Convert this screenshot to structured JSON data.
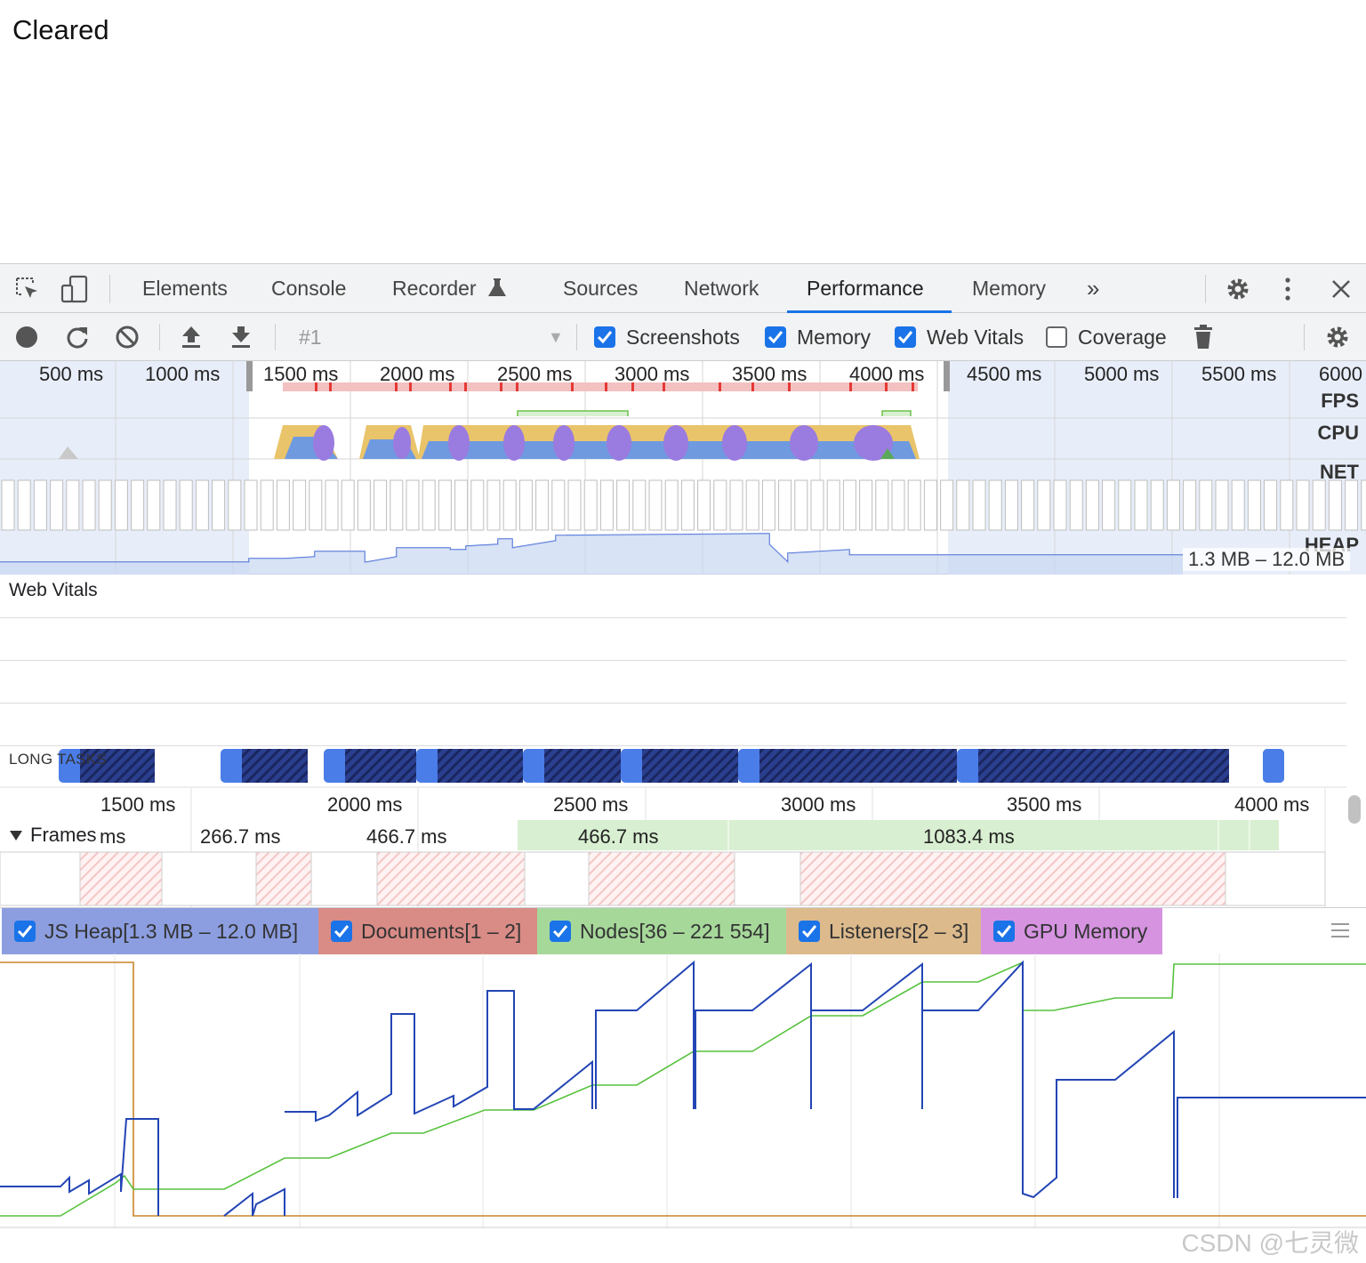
{
  "page": {
    "text": "Cleared"
  },
  "devtools": {
    "tabs": [
      {
        "label": "Elements"
      },
      {
        "label": "Console"
      },
      {
        "label": "Recorder"
      },
      {
        "label": "Sources"
      },
      {
        "label": "Network"
      },
      {
        "label": "Performance",
        "active": true
      },
      {
        "label": "Memory"
      }
    ],
    "more_tabs_icon": "chevron-double-right-icon"
  },
  "toolbar": {
    "recording_select": "#1",
    "checkboxes": [
      {
        "label": "Screenshots",
        "checked": true
      },
      {
        "label": "Memory",
        "checked": true
      },
      {
        "label": "Web Vitals",
        "checked": true
      },
      {
        "label": "Coverage",
        "checked": false
      }
    ]
  },
  "overview": {
    "ticks": [
      "500 ms",
      "1000 ms",
      "1500 ms",
      "2000 ms",
      "2500 ms",
      "3000 ms",
      "3500 ms",
      "4000 ms",
      "4500 ms",
      "5000 ms",
      "5500 ms",
      "6000"
    ],
    "tracks": [
      "FPS",
      "CPU",
      "NET",
      "HEAP"
    ],
    "heap_range": "1.3 MB – 12.0 MB"
  },
  "web_vitals": {
    "title": "Web Vitals",
    "long_tasks_label": "LONG TASKS"
  },
  "timeline": {
    "ticks": [
      "1500 ms",
      "2000 ms",
      "2500 ms",
      "3000 ms",
      "3500 ms",
      "4000 ms"
    ],
    "frames_label": "Frames",
    "frames": [
      "ms",
      "266.7 ms",
      "466.7 ms",
      "466.7 ms",
      "1083.4 ms"
    ]
  },
  "counters": [
    {
      "label": "JS Heap[1.3 MB – 12.0 MB]",
      "checked": true,
      "color": "#8c9ee0"
    },
    {
      "label": "Documents[1 – 2]",
      "checked": true,
      "color": "#d98b86"
    },
    {
      "label": "Nodes[36 – 221 554]",
      "checked": true,
      "color": "#a6d89a"
    },
    {
      "label": "Listeners[2 – 3]",
      "checked": true,
      "color": "#dcba8c"
    },
    {
      "label": "GPU Memory",
      "checked": true,
      "color": "#d593e0"
    }
  ],
  "watermark": "CSDN @七灵微"
}
